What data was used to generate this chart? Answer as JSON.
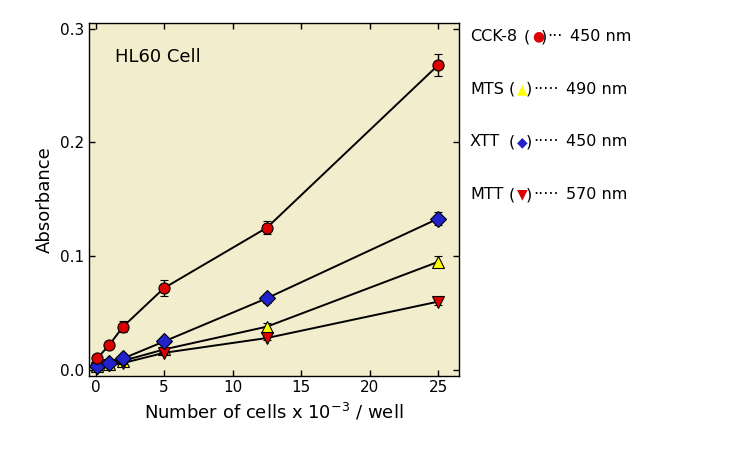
{
  "background_color": "#f2edcc",
  "fig_bg_color": "#ffffff",
  "xlabel": "Number of cells x 10$^{-3}$ / well",
  "ylabel": "Absorbance",
  "annotation": "HL60 Cell",
  "xlim": [
    -0.5,
    26.5
  ],
  "ylim": [
    -0.005,
    0.305
  ],
  "xticks": [
    0,
    5,
    10,
    15,
    20,
    25
  ],
  "yticks": [
    0,
    0.1,
    0.2,
    0.3
  ],
  "series": [
    {
      "name": "CCK-8",
      "nm": "450 nm",
      "x": [
        0.1,
        1,
        2,
        5,
        12.5,
        25
      ],
      "y": [
        0.01,
        0.022,
        0.038,
        0.072,
        0.125,
        0.268
      ],
      "yerr": [
        0.002,
        0.003,
        0.005,
        0.007,
        0.006,
        0.01
      ],
      "marker": "o",
      "markersize": 8,
      "marker_facecolor": "#dd0000",
      "marker_edgecolor": "#000000",
      "linecolor": "#000000",
      "linestyle": "-",
      "linewidth": 1.4,
      "zorder": 5
    },
    {
      "name": "MTS",
      "nm": "490 nm",
      "x": [
        0.1,
        1,
        2,
        5,
        12.5,
        25
      ],
      "y": [
        0.003,
        0.005,
        0.008,
        0.018,
        0.038,
        0.095
      ],
      "yerr": [
        0.001,
        0.001,
        0.001,
        0.002,
        0.003,
        0.005
      ],
      "marker": "^",
      "markersize": 9,
      "marker_facecolor": "#ffff00",
      "marker_edgecolor": "#000000",
      "linecolor": "#000000",
      "linestyle": "-",
      "linewidth": 1.4,
      "zorder": 2
    },
    {
      "name": "XTT",
      "nm": "450 nm",
      "x": [
        0.1,
        1,
        2,
        5,
        12.5,
        25
      ],
      "y": [
        0.003,
        0.006,
        0.01,
        0.025,
        0.063,
        0.133
      ],
      "yerr": [
        0.001,
        0.001,
        0.001,
        0.002,
        0.004,
        0.006
      ],
      "marker": "D",
      "markersize": 8,
      "marker_facecolor": "#2222cc",
      "marker_edgecolor": "#000000",
      "linecolor": "#000000",
      "linestyle": "-",
      "linewidth": 1.4,
      "zorder": 4
    },
    {
      "name": "MTT",
      "nm": "570 nm",
      "x": [
        0.1,
        1,
        2,
        5,
        12.5,
        25
      ],
      "y": [
        0.002,
        0.004,
        0.006,
        0.015,
        0.028,
        0.06
      ],
      "yerr": [
        0.001,
        0.001,
        0.001,
        0.001,
        0.002,
        0.003
      ],
      "marker": "v",
      "markersize": 9,
      "marker_facecolor": "#dd0000",
      "marker_edgecolor": "#000000",
      "linecolor": "#000000",
      "linestyle": "-",
      "linewidth": 1.4,
      "zorder": 3
    }
  ],
  "legend": [
    {
      "name": "CCK-8",
      "nm": "450 nm",
      "marker": "o",
      "mfc": "#dd0000",
      "dots": 3
    },
    {
      "name": "MTS",
      "nm": "490 nm",
      "marker": "^",
      "mfc": "#ffff00",
      "dots": 5
    },
    {
      "name": "XTT",
      "nm": "450 nm",
      "marker": "D",
      "mfc": "#2222cc",
      "dots": 5
    },
    {
      "name": "MTT",
      "nm": "570 nm",
      "marker": "v",
      "mfc": "#dd0000",
      "dots": 5
    }
  ]
}
